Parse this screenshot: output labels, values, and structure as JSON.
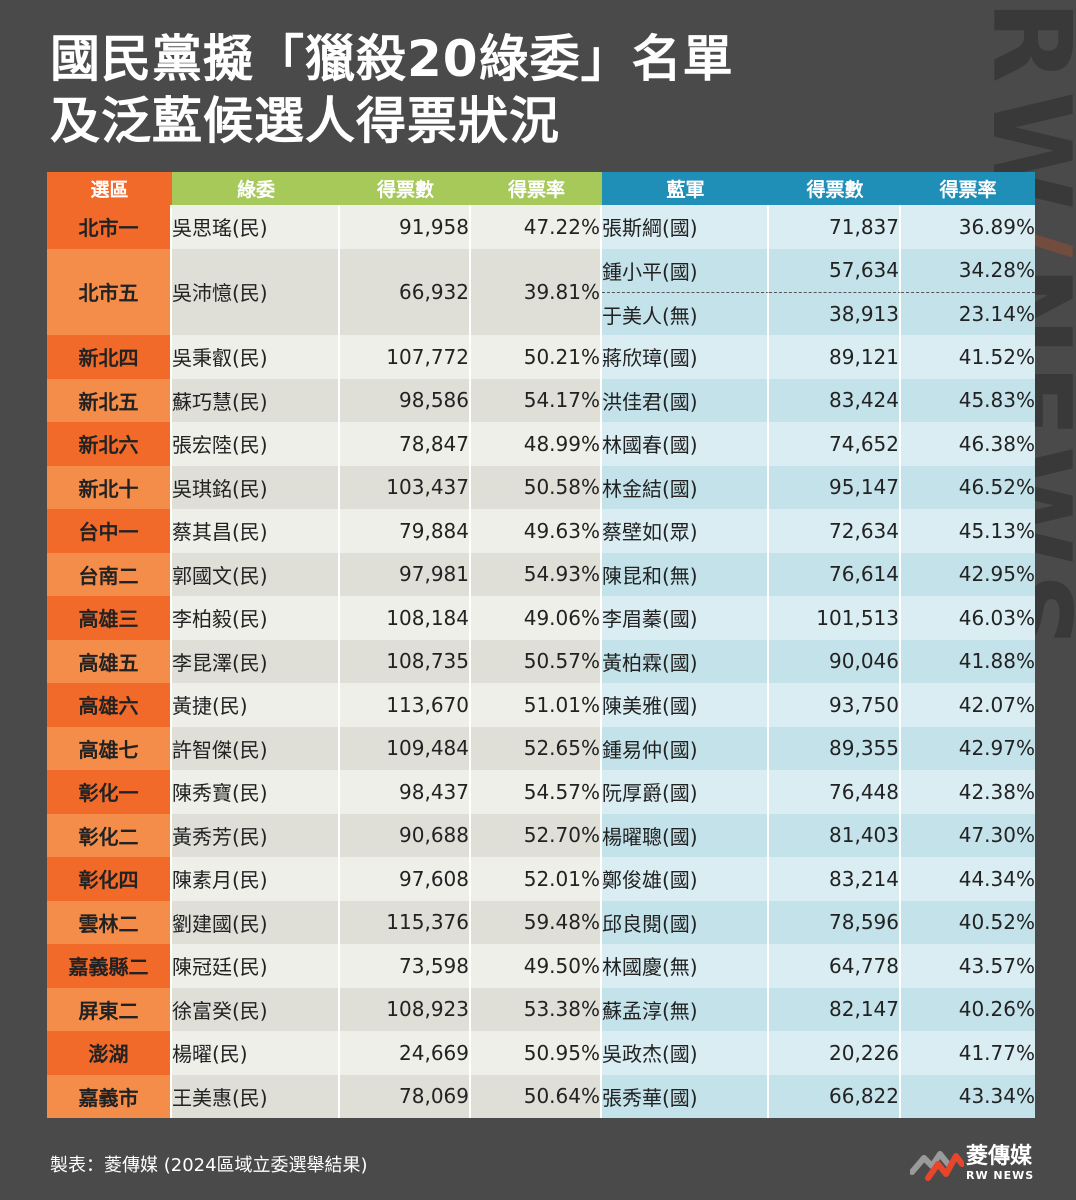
{
  "title": {
    "line1": "國民黨擬「獵殺20綠委」名單",
    "line2": "及泛藍候選人得票狀況"
  },
  "watermark": {
    "text1": "RW",
    "slash": "/",
    "text2": "NEWS"
  },
  "table": {
    "headers": {
      "district": "選區",
      "green": "綠委",
      "green_votes": "得票數",
      "green_rate": "得票率",
      "blue": "藍軍",
      "blue_votes": "得票數",
      "blue_rate": "得票率"
    },
    "rows": [
      {
        "district": "北市一",
        "green": "吳思瑤(民)",
        "gv": "91,958",
        "gr": "47.22%",
        "blue": "張斯綱(國)",
        "bv": "71,837",
        "br": "36.89%"
      },
      {
        "district": "北市五",
        "green": "吳沛憶(民)",
        "gv": "66,932",
        "gr": "39.81%",
        "blue": "鍾小平(國)",
        "bv": "57,634",
        "br": "34.28%",
        "blue2": "于美人(無)",
        "bv2": "38,913",
        "br2": "23.14%"
      },
      {
        "district": "新北四",
        "green": "吳秉叡(民)",
        "gv": "107,772",
        "gr": "50.21%",
        "blue": "蔣欣璋(國)",
        "bv": "89,121",
        "br": "41.52%"
      },
      {
        "district": "新北五",
        "green": "蘇巧慧(民)",
        "gv": "98,586",
        "gr": "54.17%",
        "blue": "洪佳君(國)",
        "bv": "83,424",
        "br": "45.83%"
      },
      {
        "district": "新北六",
        "green": "張宏陸(民)",
        "gv": "78,847",
        "gr": "48.99%",
        "blue": "林國春(國)",
        "bv": "74,652",
        "br": "46.38%"
      },
      {
        "district": "新北十",
        "green": "吳琪銘(民)",
        "gv": "103,437",
        "gr": "50.58%",
        "blue": "林金結(國)",
        "bv": "95,147",
        "br": "46.52%"
      },
      {
        "district": "台中一",
        "green": "蔡其昌(民)",
        "gv": "79,884",
        "gr": "49.63%",
        "blue": "蔡壁如(眾)",
        "bv": "72,634",
        "br": "45.13%"
      },
      {
        "district": "台南二",
        "green": "郭國文(民)",
        "gv": "97,981",
        "gr": "54.93%",
        "blue": "陳昆和(無)",
        "bv": "76,614",
        "br": "42.95%"
      },
      {
        "district": "高雄三",
        "green": "李柏毅(民)",
        "gv": "108,184",
        "gr": "49.06%",
        "blue": "李眉蓁(國)",
        "bv": "101,513",
        "br": "46.03%"
      },
      {
        "district": "高雄五",
        "green": "李昆澤(民)",
        "gv": "108,735",
        "gr": "50.57%",
        "blue": "黃柏霖(國)",
        "bv": "90,046",
        "br": "41.88%"
      },
      {
        "district": "高雄六",
        "green": "黃捷(民)",
        "gv": "113,670",
        "gr": "51.01%",
        "blue": "陳美雅(國)",
        "bv": "93,750",
        "br": "42.07%"
      },
      {
        "district": "高雄七",
        "green": "許智傑(民)",
        "gv": "109,484",
        "gr": "52.65%",
        "blue": "鍾易仲(國)",
        "bv": "89,355",
        "br": "42.97%"
      },
      {
        "district": "彰化一",
        "green": "陳秀寶(民)",
        "gv": "98,437",
        "gr": "54.57%",
        "blue": "阮厚爵(國)",
        "bv": "76,448",
        "br": "42.38%"
      },
      {
        "district": "彰化二",
        "green": "黃秀芳(民)",
        "gv": "90,688",
        "gr": "52.70%",
        "blue": "楊曜聰(國)",
        "bv": "81,403",
        "br": "47.30%"
      },
      {
        "district": "彰化四",
        "green": "陳素月(民)",
        "gv": "97,608",
        "gr": "52.01%",
        "blue": "鄭俊雄(國)",
        "bv": "83,214",
        "br": "44.34%"
      },
      {
        "district": "雲林二",
        "green": "劉建國(民)",
        "gv": "115,376",
        "gr": "59.48%",
        "blue": "邱良閱(國)",
        "bv": "78,596",
        "br": "40.52%"
      },
      {
        "district": "嘉義縣二",
        "green": "陳冠廷(民)",
        "gv": "73,598",
        "gr": "49.50%",
        "blue": "林國慶(無)",
        "bv": "64,778",
        "br": "43.57%"
      },
      {
        "district": "屏東二",
        "green": "徐富癸(民)",
        "gv": "108,923",
        "gr": "53.38%",
        "blue": "蘇孟淳(無)",
        "bv": "82,147",
        "br": "40.26%"
      },
      {
        "district": "澎湖",
        "green": "楊曜(民)",
        "gv": "24,669",
        "gr": "50.95%",
        "blue": "吳政杰(國)",
        "bv": "20,226",
        "br": "41.77%"
      },
      {
        "district": "嘉義市",
        "green": "王美惠(民)",
        "gv": "78,069",
        "gr": "50.64%",
        "blue": "張秀華(國)",
        "bv": "66,822",
        "br": "43.34%"
      }
    ]
  },
  "footer": {
    "credit": "製表：菱傳媒 (2024區域立委選舉結果)"
  },
  "logo": {
    "cn": "菱傳媒",
    "en": "RW NEWS"
  },
  "colors": {
    "orange": "#f26a2a",
    "green": "#a6c95a",
    "blue": "#1f8fb8",
    "bg": "#4a4a4a"
  }
}
